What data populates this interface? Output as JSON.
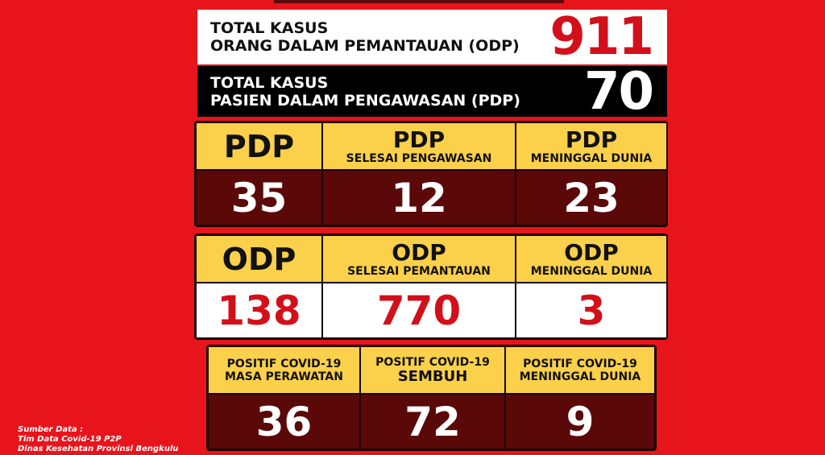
{
  "totals": [
    {
      "line1": "TOTAL KASUS",
      "line2": "ORANG DALAM PEMANTAUAN (ODP)",
      "value": 911
    },
    {
      "line1": "TOTAL KASUS",
      "line2": "PASIEN DALAM PENGAWASAN (PDP)",
      "value": 70
    }
  ],
  "groups": [
    {
      "cells": [
        {
          "title": "PDP",
          "value": 35
        },
        {
          "title": "PDP",
          "subtitle": "SELESAI PENGAWASAN",
          "value": 12
        },
        {
          "title": "PDP",
          "subtitle": "MENINGGAL DUNIA",
          "value": 23
        }
      ]
    },
    {
      "cells": [
        {
          "title": "ODP",
          "value": 138
        },
        {
          "title": "ODP",
          "subtitle": "SELESAI PEMANTAUAN",
          "value": 770
        },
        {
          "title": "ODP",
          "subtitle": "MENINGGAL DUNIA",
          "value": 3
        }
      ]
    },
    {
      "cells": [
        {
          "title": "POSITIF COVID-19",
          "subtitle": "MASA PERAWATAN",
          "value": 36
        },
        {
          "title": "POSITIF COVID-19",
          "subtitle": "SEMBUH",
          "value": 72
        },
        {
          "title": "POSITIF COVID-19",
          "subtitle": "MENINGGAL DUNIA",
          "value": 9
        }
      ]
    }
  ],
  "source": {
    "line1": "Sumber Data :",
    "line2": "Tim Data Covid-19 P2P",
    "line3": "Dinas Kesehatan Provinsi Bengkulu"
  }
}
